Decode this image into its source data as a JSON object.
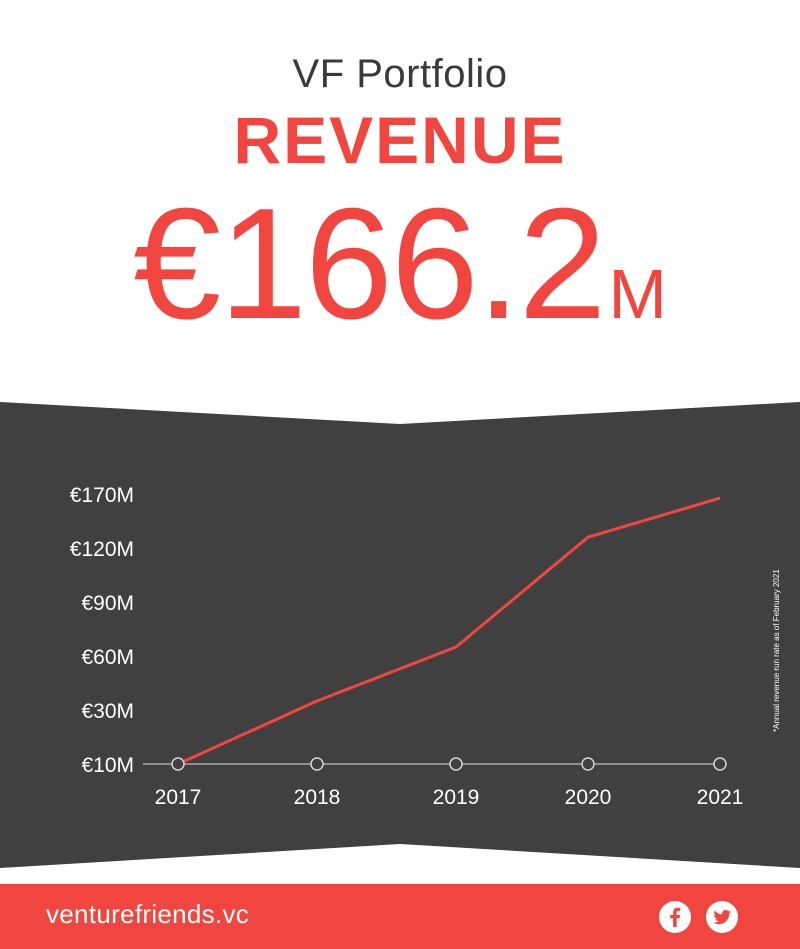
{
  "header": {
    "kicker": "VF Portfolio",
    "metric_title": "REVENUE",
    "big_number": "€166.2",
    "big_number_unit": "M"
  },
  "chart_data": {
    "type": "line",
    "x": [
      "2017",
      "2018",
      "2019",
      "2020",
      "2021"
    ],
    "y_tick_labels": [
      "€10M",
      "€30M",
      "€60M",
      "€90M",
      "€120M",
      "€170M"
    ],
    "series": [
      {
        "values": [
          10,
          35,
          65,
          130,
          166.2
        ]
      }
    ],
    "ylim": [
      10,
      170
    ],
    "grid": false,
    "line_color": "#f0463f",
    "footnote": "*Annual revenue run rate as of February 2021"
  },
  "footer": {
    "link": "venturefriends.vc",
    "social_icons": [
      "facebook-icon",
      "twitter-icon"
    ]
  },
  "colors": {
    "accent": "#f0463f",
    "panel": "#404040",
    "text_dark": "#3a3a3a"
  }
}
